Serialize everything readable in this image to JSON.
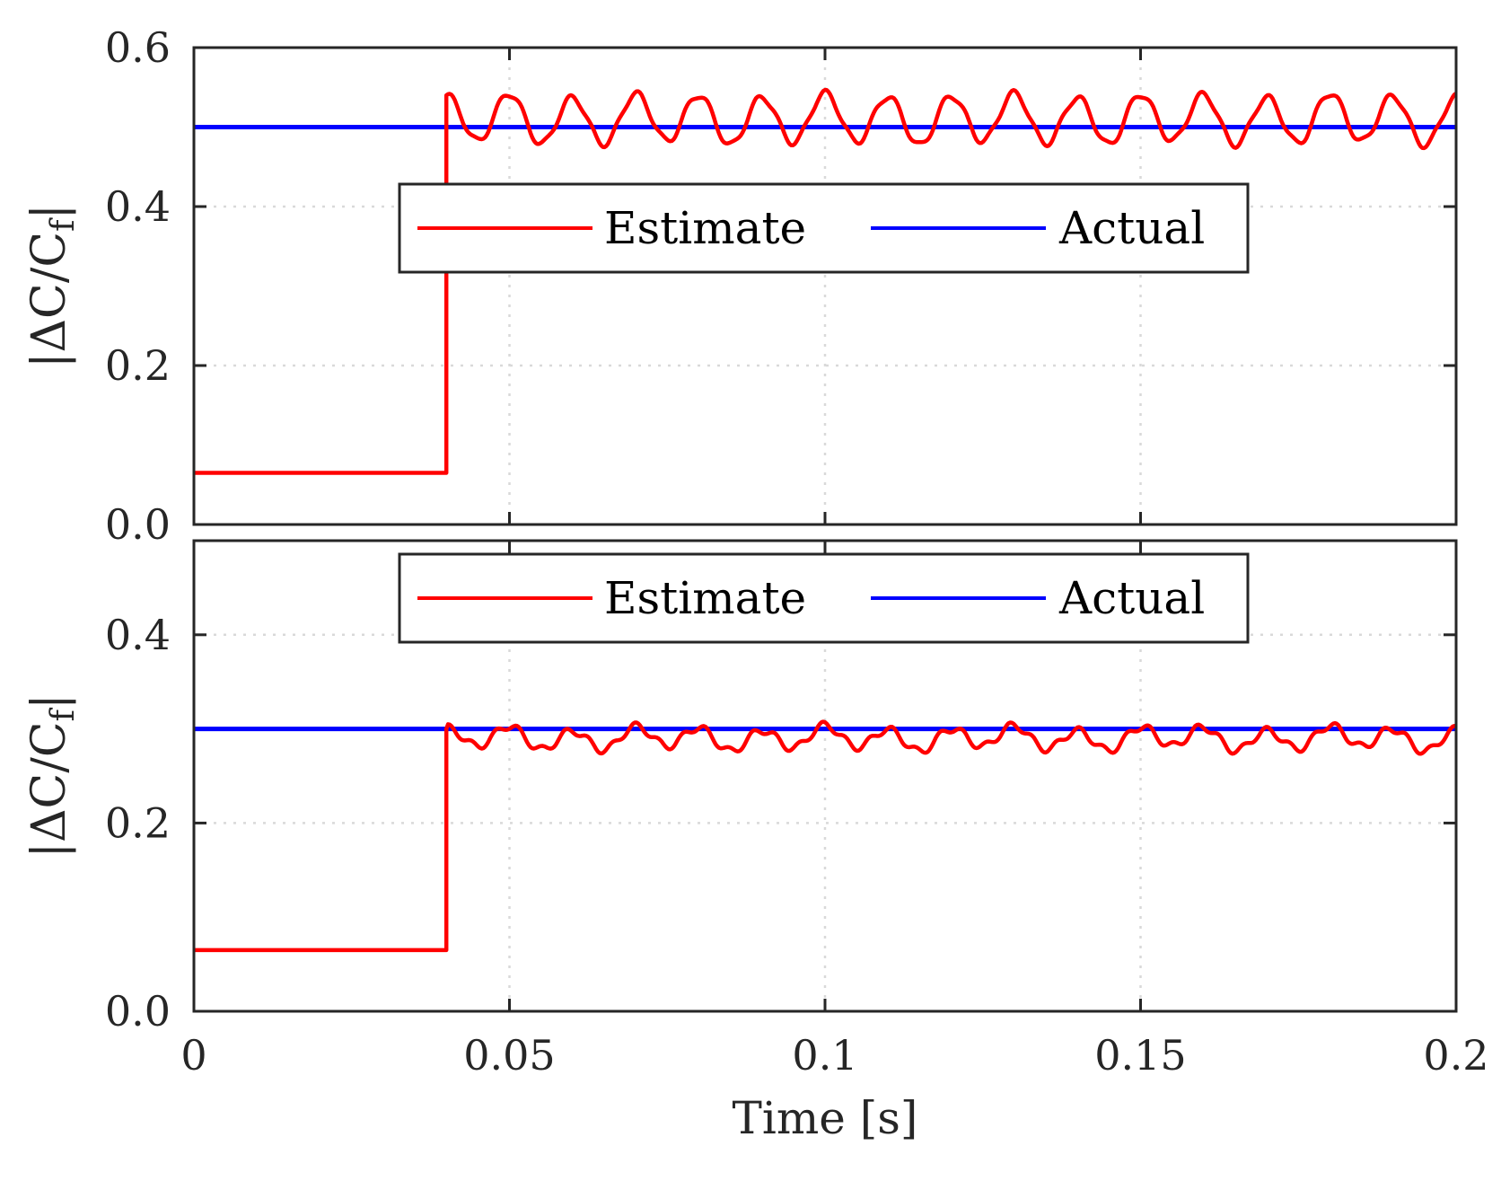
{
  "chart_data": [
    {
      "type": "line",
      "ylabel": "|ΔC/C",
      "ylabel_sub": "f",
      "ylabel_end": "|",
      "xlabel": "",
      "xlim": [
        0,
        0.2
      ],
      "ylim": [
        0,
        0.6
      ],
      "yticks": [
        0,
        0.2,
        0.4,
        0.6
      ],
      "ytick_labels": [
        "0.0",
        "0.2",
        "0.4",
        "0.6"
      ],
      "xticks": [
        0,
        0.05,
        0.1,
        0.15,
        0.2
      ],
      "grid": true,
      "legend": {
        "placement": "center",
        "orientation": "horizontal",
        "entries": [
          "Estimate",
          "Actual"
        ]
      },
      "colors": {
        "estimate": "#ff0000",
        "actual": "#0000ff"
      },
      "series": [
        {
          "name": "Estimate",
          "initial": 0.065,
          "step_time": 0.04,
          "peak": 0.54,
          "mean": 0.51,
          "amplitude": 0.03,
          "period": 0.01
        },
        {
          "name": "Actual",
          "value": 0.5
        }
      ]
    },
    {
      "type": "line",
      "ylabel": "|ΔC/C",
      "ylabel_sub": "f",
      "ylabel_end": "|",
      "xlabel": "Time [s]",
      "xlim": [
        0,
        0.2
      ],
      "ylim": [
        0,
        0.5
      ],
      "yticks": [
        0,
        0.2,
        0.4
      ],
      "ytick_labels": [
        "0.0",
        "0.2",
        "0.4"
      ],
      "xticks": [
        0,
        0.05,
        0.1,
        0.15,
        0.2
      ],
      "xtick_labels": [
        "0",
        "0.05",
        "0.1",
        "0.15",
        "0.2"
      ],
      "grid": true,
      "legend": {
        "placement": "top-center",
        "orientation": "horizontal",
        "entries": [
          "Estimate",
          "Actual"
        ]
      },
      "colors": {
        "estimate": "#ff0000",
        "actual": "#0000ff"
      },
      "series": [
        {
          "name": "Estimate",
          "initial": 0.065,
          "step_time": 0.04,
          "peak": 0.3,
          "mean": 0.29,
          "amplitude": 0.011,
          "period": 0.01
        },
        {
          "name": "Actual",
          "value": 0.3
        }
      ]
    }
  ]
}
